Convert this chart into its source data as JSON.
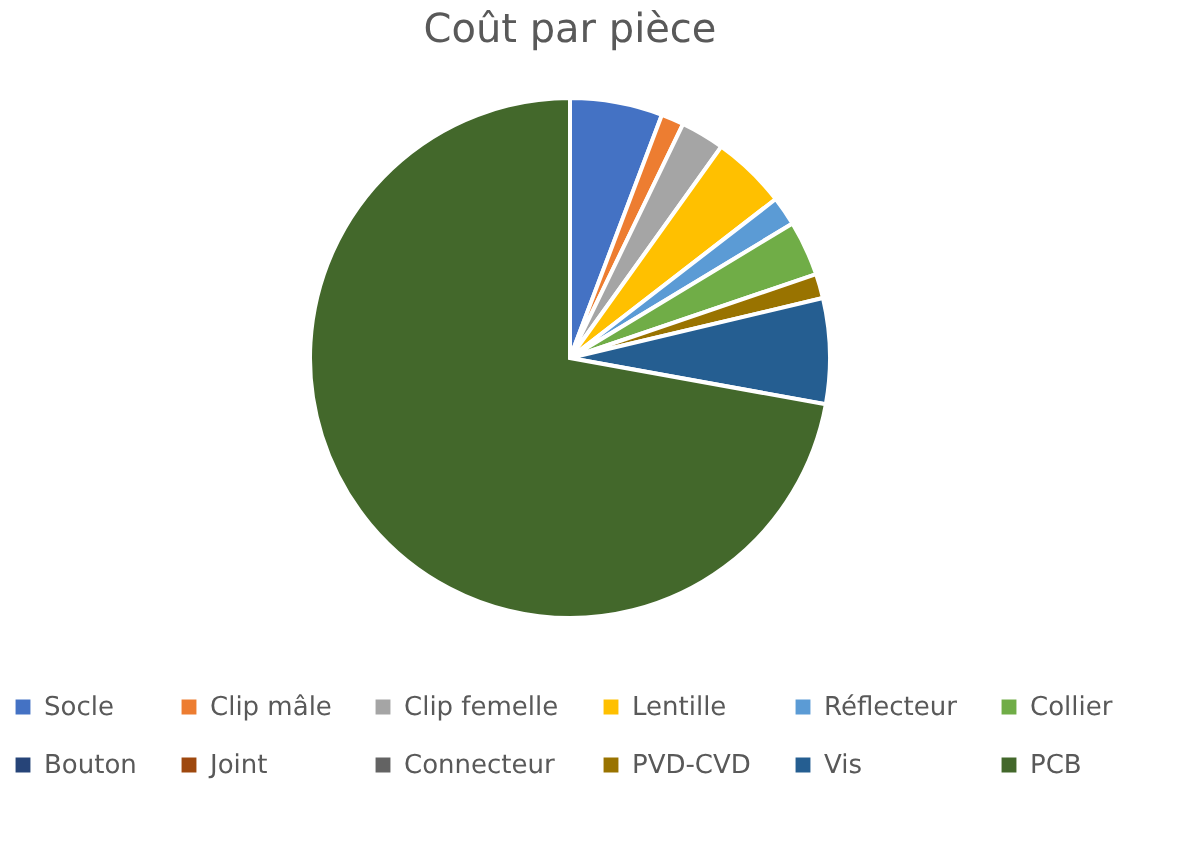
{
  "chart_data": {
    "type": "pie",
    "title": "Coût par pièce",
    "categories": [
      "Socle",
      "Clip mâle",
      "Clip femelle",
      "Lentille",
      "Réflecteur",
      "Collier",
      "Bouton",
      "Joint",
      "Connecteur",
      "PVD-CVD",
      "Vis",
      "PCB"
    ],
    "values": [
      5.7,
      1.4,
      2.7,
      4.6,
      1.8,
      3.4,
      null,
      null,
      null,
      1.5,
      6.5,
      71.5
    ],
    "colors": [
      "#4472c4",
      "#ed7d31",
      "#a5a5a5",
      "#ffc000",
      "#5b9bd5",
      "#70ad47",
      "#264478",
      "#9e480e",
      "#636363",
      "#997300",
      "#255e91",
      "#43682b"
    ],
    "legend": "bottom"
  }
}
